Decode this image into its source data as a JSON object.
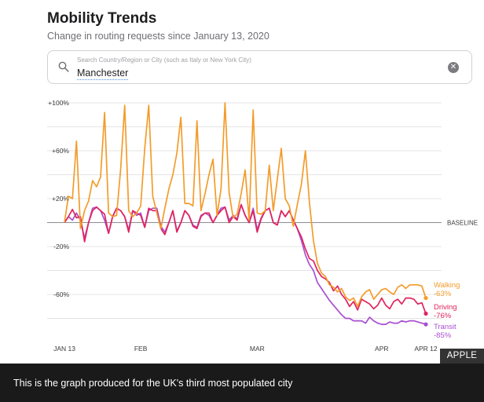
{
  "header": {
    "title": "Mobility Trends",
    "subtitle": "Change in routing requests since January 13, 2020"
  },
  "search": {
    "placeholder": "Search Country/Region or City (such as Italy or New York City)",
    "value": "Manchester",
    "icon": "search-icon",
    "clear_icon": "clear-icon",
    "clear_symbol": "✕"
  },
  "credit": "APPLE",
  "caption": "This is the graph produced for the UK's third most populated city",
  "chart_data": {
    "type": "line",
    "title": "",
    "x_start": "2020-01-13",
    "x_end": "2020-04-12",
    "x_tick_labels": [
      "JAN 13",
      "FEB",
      "MAR",
      "APR",
      "APR 12"
    ],
    "x_tick_dates": [
      "2020-01-13",
      "2020-02-01",
      "2020-03-01",
      "2020-04-01",
      "2020-04-12"
    ],
    "y_ticks": [
      100,
      60,
      20,
      -20,
      -60
    ],
    "y_tick_labels": [
      "+100%",
      "+60%",
      "+20%",
      "-20%",
      "-60%"
    ],
    "ylim": [
      -110,
      100
    ],
    "baseline_value": 0,
    "baseline_label": "BASELINE",
    "grid": true,
    "colors": {
      "walking": "#f39c2b",
      "driving": "#e0245e",
      "transit": "#a94fd1",
      "grid": "#e4e4e4",
      "baseline": "#8e8e93"
    },
    "series": [
      {
        "name": "Walking",
        "key": "walking",
        "label_line1": "Walking",
        "label_line2": "-63%",
        "values": [
          0,
          22,
          20,
          68,
          -5,
          10,
          18,
          35,
          30,
          38,
          92,
          8,
          5,
          6,
          45,
          98,
          10,
          5,
          8,
          14,
          62,
          98,
          22,
          8,
          -5,
          12,
          28,
          40,
          58,
          88,
          16,
          16,
          14,
          85,
          10,
          24,
          40,
          53,
          6,
          28,
          100,
          25,
          4,
          7,
          24,
          44,
          2,
          94,
          8,
          7,
          10,
          48,
          10,
          36,
          62,
          20,
          14,
          -3,
          15,
          32,
          60,
          17,
          -15,
          -34,
          -42,
          -45,
          -52,
          -54,
          -58,
          -55,
          -62,
          -65,
          -63,
          -70,
          -62,
          -58,
          -56,
          -64,
          -60,
          -56,
          -55,
          -58,
          -60,
          -54,
          -52,
          -55,
          -52,
          -52,
          -52,
          -53,
          -63
        ],
        "end_value": -63
      },
      {
        "name": "Driving",
        "key": "driving",
        "label_line1": "Driving",
        "label_line2": "-76%",
        "values": [
          0,
          5,
          11,
          4,
          5,
          -16,
          0,
          10,
          13,
          10,
          7,
          -9,
          5,
          12,
          10,
          5,
          -8,
          10,
          8,
          6,
          -4,
          12,
          10,
          10,
          -5,
          -10,
          0,
          10,
          -8,
          0,
          10,
          6,
          -3,
          -5,
          5,
          8,
          8,
          0,
          6,
          10,
          13,
          0,
          5,
          2,
          15,
          6,
          0,
          10,
          -8,
          3,
          10,
          12,
          0,
          -2,
          10,
          5,
          10,
          2,
          -5,
          -12,
          -22,
          -30,
          -32,
          -40,
          -45,
          -47,
          -50,
          -57,
          -53,
          -60,
          -64,
          -70,
          -66,
          -73,
          -64,
          -66,
          -68,
          -72,
          -69,
          -63,
          -69,
          -72,
          -66,
          -64,
          -68,
          -63,
          -63,
          -64,
          -68,
          -67,
          -76
        ],
        "end_value": -76
      },
      {
        "name": "Transit",
        "key": "transit",
        "label_line1": "Transit",
        "label_line2": "-85%",
        "values": [
          0,
          5,
          2,
          8,
          2,
          -13,
          0,
          12,
          13,
          10,
          2,
          -9,
          5,
          12,
          10,
          5,
          -6,
          10,
          6,
          8,
          -4,
          10,
          12,
          12,
          -3,
          -8,
          0,
          10,
          -7,
          0,
          10,
          6,
          -2,
          -4,
          6,
          8,
          6,
          0,
          6,
          12,
          13,
          2,
          6,
          3,
          15,
          6,
          0,
          12,
          -6,
          4,
          10,
          12,
          0,
          -2,
          10,
          5,
          10,
          2,
          -5,
          -15,
          -27,
          -35,
          -40,
          -50,
          -55,
          -60,
          -65,
          -69,
          -73,
          -77,
          -80,
          -80,
          -82,
          -82,
          -82,
          -84,
          -79,
          -82,
          -84,
          -85,
          -85,
          -83,
          -84,
          -84,
          -82,
          -83,
          -82,
          -82,
          -83,
          -84,
          -85
        ],
        "end_value": -85
      }
    ]
  }
}
